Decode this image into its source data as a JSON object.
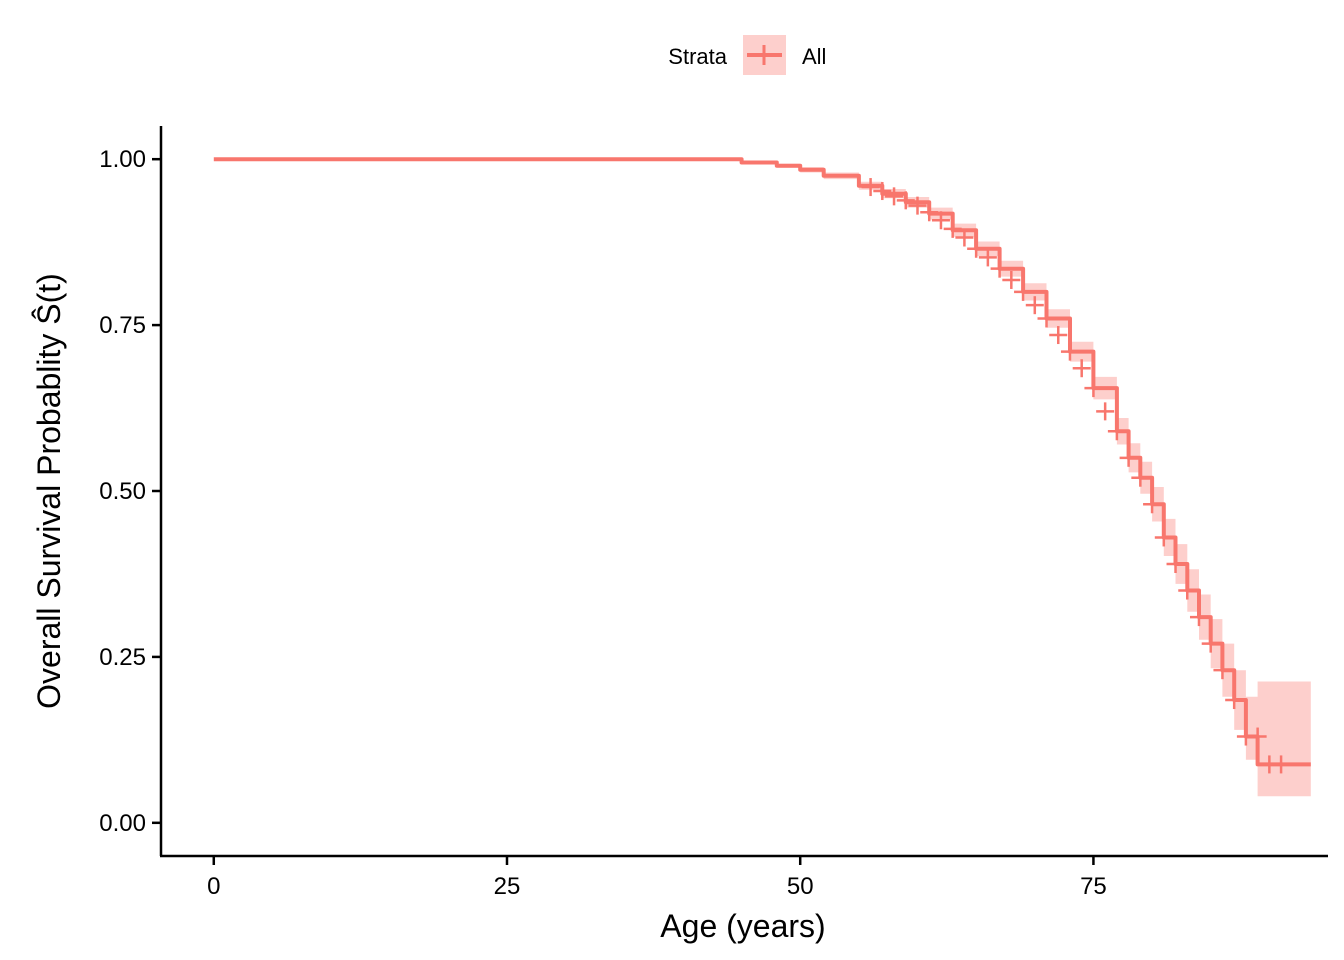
{
  "chart_data": {
    "type": "line",
    "subtype": "kaplan-meier",
    "title": "",
    "xlabel": "Age (years)",
    "ylabel": "Overall Survival Probablity ",
    "ylabel_math": "Ŝ(t)",
    "xlim": [
      -4.5,
      95
    ],
    "ylim": [
      -0.05,
      1.05
    ],
    "x_ticks": [
      0,
      25,
      50,
      75
    ],
    "x_tick_labels": [
      "0",
      "25",
      "50",
      "75"
    ],
    "y_ticks": [
      0,
      0.25,
      0.5,
      0.75,
      1.0
    ],
    "y_tick_labels": [
      "0.00",
      "0.25",
      "0.50",
      "0.75",
      "1.00"
    ],
    "grid": false,
    "legend": {
      "title": "Strata",
      "position": "top",
      "entries": [
        "All"
      ]
    },
    "colors": {
      "line": "#F8766D",
      "band": "#F8766D"
    },
    "series": [
      {
        "name": "All",
        "x": [
          0,
          40,
          45,
          48,
          50,
          52,
          55,
          57,
          59,
          61,
          63,
          65,
          67,
          69,
          71,
          73,
          75,
          77,
          78,
          79,
          80,
          81,
          82,
          83,
          84,
          85,
          86,
          87,
          88,
          89,
          90,
          91,
          92
        ],
        "y": [
          1.0,
          1.0,
          0.995,
          0.99,
          0.984,
          0.975,
          0.96,
          0.948,
          0.935,
          0.918,
          0.893,
          0.865,
          0.835,
          0.8,
          0.76,
          0.71,
          0.655,
          0.59,
          0.55,
          0.52,
          0.48,
          0.43,
          0.39,
          0.35,
          0.31,
          0.27,
          0.23,
          0.185,
          0.13,
          0.088,
          0.088,
          0.088,
          0.088
        ],
        "lower": [
          1.0,
          1.0,
          0.993,
          0.987,
          0.98,
          0.97,
          0.954,
          0.941,
          0.927,
          0.909,
          0.883,
          0.854,
          0.823,
          0.787,
          0.746,
          0.695,
          0.638,
          0.57,
          0.528,
          0.496,
          0.454,
          0.402,
          0.36,
          0.318,
          0.276,
          0.233,
          0.19,
          0.14,
          0.095,
          0.04,
          0.04,
          0.04,
          0.04
        ],
        "upper": [
          1.0,
          1.0,
          0.997,
          0.993,
          0.988,
          0.98,
          0.966,
          0.955,
          0.943,
          0.927,
          0.903,
          0.876,
          0.847,
          0.813,
          0.774,
          0.725,
          0.672,
          0.61,
          0.572,
          0.544,
          0.506,
          0.458,
          0.42,
          0.382,
          0.344,
          0.307,
          0.27,
          0.23,
          0.19,
          0.213,
          0.213,
          0.213,
          0.213
        ],
        "censor_x": [
          56,
          57,
          58,
          59,
          60,
          61,
          62,
          63,
          64,
          65,
          66,
          67,
          68,
          69,
          70,
          71,
          72,
          73,
          74,
          75,
          76,
          77,
          78,
          79,
          80,
          81,
          82,
          83,
          84,
          85,
          86,
          87,
          88,
          89,
          90,
          91
        ],
        "censor_y": [
          0.958,
          0.952,
          0.944,
          0.938,
          0.93,
          0.92,
          0.908,
          0.895,
          0.882,
          0.865,
          0.852,
          0.835,
          0.818,
          0.8,
          0.78,
          0.76,
          0.735,
          0.71,
          0.685,
          0.655,
          0.62,
          0.59,
          0.55,
          0.52,
          0.48,
          0.43,
          0.39,
          0.35,
          0.31,
          0.27,
          0.23,
          0.185,
          0.13,
          0.13,
          0.088,
          0.088
        ]
      }
    ]
  }
}
